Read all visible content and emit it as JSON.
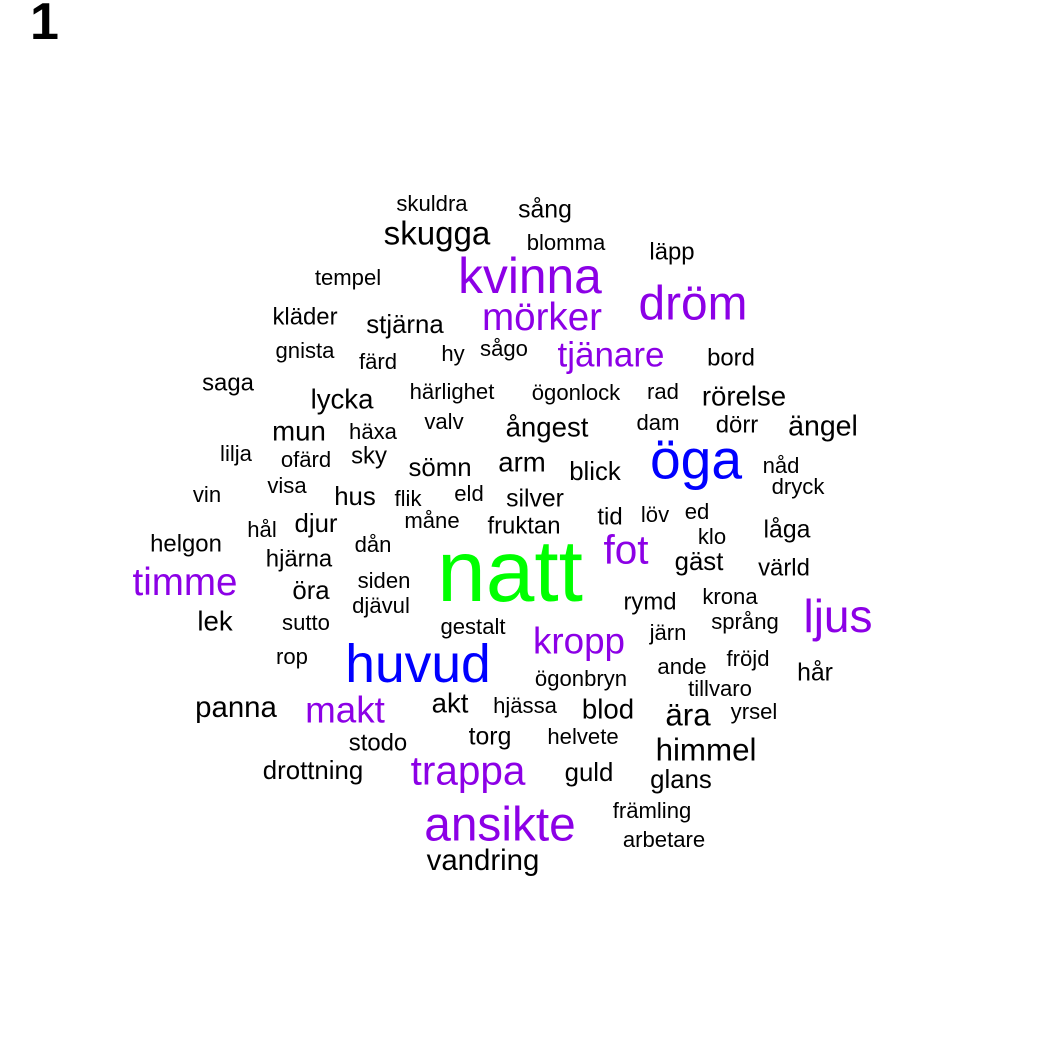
{
  "panel_label": "1",
  "colors": {
    "top": "#00ff00",
    "high": "#0000ff",
    "mid": "#8c00e6",
    "low": "#000000"
  },
  "words": [
    {
      "text": "natt",
      "weight": 95,
      "tier": "top"
    },
    {
      "text": "öga",
      "weight": 60,
      "tier": "high"
    },
    {
      "text": "huvud",
      "weight": 58,
      "tier": "high"
    },
    {
      "text": "kvinna",
      "weight": 54,
      "tier": "mid"
    },
    {
      "text": "dröm",
      "weight": 52,
      "tier": "mid"
    },
    {
      "text": "ansikte",
      "weight": 52,
      "tier": "mid"
    },
    {
      "text": "ljus",
      "weight": 50,
      "tier": "mid"
    },
    {
      "text": "trappa",
      "weight": 44,
      "tier": "mid"
    },
    {
      "text": "fot",
      "weight": 44,
      "tier": "mid"
    },
    {
      "text": "mörker",
      "weight": 42,
      "tier": "mid"
    },
    {
      "text": "timme",
      "weight": 42,
      "tier": "mid"
    },
    {
      "text": "kropp",
      "weight": 40,
      "tier": "mid"
    },
    {
      "text": "makt",
      "weight": 40,
      "tier": "mid"
    },
    {
      "text": "tjänare",
      "weight": 38,
      "tier": "mid"
    },
    {
      "text": "skugga",
      "weight": 36,
      "tier": "low"
    },
    {
      "text": "himmel",
      "weight": 34,
      "tier": "low"
    },
    {
      "text": "ära",
      "weight": 34,
      "tier": "low"
    },
    {
      "text": "panna",
      "weight": 32,
      "tier": "low"
    },
    {
      "text": "vandring",
      "weight": 32,
      "tier": "low"
    },
    {
      "text": "ängel",
      "weight": 31,
      "tier": "low"
    },
    {
      "text": "rörelse",
      "weight": 30,
      "tier": "low"
    },
    {
      "text": "ångest",
      "weight": 30,
      "tier": "low"
    },
    {
      "text": "arm",
      "weight": 30,
      "tier": "low"
    },
    {
      "text": "blod",
      "weight": 30,
      "tier": "low"
    },
    {
      "text": "akt",
      "weight": 30,
      "tier": "low"
    },
    {
      "text": "lycka",
      "weight": 30,
      "tier": "low"
    },
    {
      "text": "lek",
      "weight": 30,
      "tier": "low"
    },
    {
      "text": "mun",
      "weight": 30,
      "tier": "low"
    },
    {
      "text": "drottning",
      "weight": 28,
      "tier": "low"
    },
    {
      "text": "stjärna",
      "weight": 28,
      "tier": "low"
    },
    {
      "text": "sömn",
      "weight": 28,
      "tier": "low"
    },
    {
      "text": "gäst",
      "weight": 28,
      "tier": "low"
    },
    {
      "text": "guld",
      "weight": 28,
      "tier": "low"
    },
    {
      "text": "glans",
      "weight": 28,
      "tier": "low"
    },
    {
      "text": "hus",
      "weight": 28,
      "tier": "low"
    },
    {
      "text": "djur",
      "weight": 28,
      "tier": "low"
    },
    {
      "text": "öra",
      "weight": 28,
      "tier": "low"
    },
    {
      "text": "blick",
      "weight": 28,
      "tier": "low"
    },
    {
      "text": "silver",
      "weight": 27,
      "tier": "low"
    },
    {
      "text": "torg",
      "weight": 27,
      "tier": "low"
    },
    {
      "text": "låga",
      "weight": 27,
      "tier": "low"
    },
    {
      "text": "hår",
      "weight": 27,
      "tier": "low"
    },
    {
      "text": "sång",
      "weight": 27,
      "tier": "low"
    },
    {
      "text": "läpp",
      "weight": 26,
      "tier": "low"
    },
    {
      "text": "bord",
      "weight": 26,
      "tier": "low"
    },
    {
      "text": "saga",
      "weight": 26,
      "tier": "low"
    },
    {
      "text": "fruktan",
      "weight": 26,
      "tier": "low"
    },
    {
      "text": "värld",
      "weight": 26,
      "tier": "low"
    },
    {
      "text": "kläder",
      "weight": 26,
      "tier": "low"
    },
    {
      "text": "hjärna",
      "weight": 26,
      "tier": "low"
    },
    {
      "text": "helgon",
      "weight": 26,
      "tier": "low"
    },
    {
      "text": "stodo",
      "weight": 26,
      "tier": "low"
    },
    {
      "text": "tid",
      "weight": 26,
      "tier": "low"
    },
    {
      "text": "rymd",
      "weight": 26,
      "tier": "low"
    },
    {
      "text": "sky",
      "weight": 26,
      "tier": "low"
    },
    {
      "text": "dörr",
      "weight": 26,
      "tier": "low"
    },
    {
      "text": "blomma",
      "weight": 24,
      "tier": "low"
    },
    {
      "text": "tempel",
      "weight": 24,
      "tier": "low"
    },
    {
      "text": "skuldra",
      "weight": 24,
      "tier": "low"
    },
    {
      "text": "härlighet",
      "weight": 24,
      "tier": "low"
    },
    {
      "text": "ögonlock",
      "weight": 24,
      "tier": "low"
    },
    {
      "text": "rad",
      "weight": 24,
      "tier": "low"
    },
    {
      "text": "dam",
      "weight": 24,
      "tier": "low"
    },
    {
      "text": "valv",
      "weight": 24,
      "tier": "low"
    },
    {
      "text": "häxa",
      "weight": 24,
      "tier": "low"
    },
    {
      "text": "lilja",
      "weight": 24,
      "tier": "low"
    },
    {
      "text": "vin",
      "weight": 24,
      "tier": "low"
    },
    {
      "text": "visa",
      "weight": 24,
      "tier": "low"
    },
    {
      "text": "eld",
      "weight": 24,
      "tier": "low"
    },
    {
      "text": "löv",
      "weight": 24,
      "tier": "low"
    },
    {
      "text": "ed",
      "weight": 24,
      "tier": "low"
    },
    {
      "text": "klo",
      "weight": 24,
      "tier": "low"
    },
    {
      "text": "nåd",
      "weight": 24,
      "tier": "low"
    },
    {
      "text": "dryck",
      "weight": 24,
      "tier": "low"
    },
    {
      "text": "gnista",
      "weight": 24,
      "tier": "low"
    },
    {
      "text": "färd",
      "weight": 24,
      "tier": "low"
    },
    {
      "text": "hy",
      "weight": 24,
      "tier": "low"
    },
    {
      "text": "sågo",
      "weight": 24,
      "tier": "low"
    },
    {
      "text": "ofärd",
      "weight": 24,
      "tier": "low"
    },
    {
      "text": "flik",
      "weight": 24,
      "tier": "low"
    },
    {
      "text": "hål",
      "weight": 24,
      "tier": "low"
    },
    {
      "text": "måne",
      "weight": 24,
      "tier": "low"
    },
    {
      "text": "dån",
      "weight": 24,
      "tier": "low"
    },
    {
      "text": "siden",
      "weight": 24,
      "tier": "low"
    },
    {
      "text": "djävul",
      "weight": 24,
      "tier": "low"
    },
    {
      "text": "sutto",
      "weight": 24,
      "tier": "low"
    },
    {
      "text": "gestalt",
      "weight": 24,
      "tier": "low"
    },
    {
      "text": "krona",
      "weight": 24,
      "tier": "low"
    },
    {
      "text": "språng",
      "weight": 24,
      "tier": "low"
    },
    {
      "text": "järn",
      "weight": 24,
      "tier": "low"
    },
    {
      "text": "ande",
      "weight": 24,
      "tier": "low"
    },
    {
      "text": "fröjd",
      "weight": 24,
      "tier": "low"
    },
    {
      "text": "rop",
      "weight": 24,
      "tier": "low"
    },
    {
      "text": "ögonbryn",
      "weight": 24,
      "tier": "low"
    },
    {
      "text": "tillvaro",
      "weight": 24,
      "tier": "low"
    },
    {
      "text": "hjässa",
      "weight": 24,
      "tier": "low"
    },
    {
      "text": "yrsel",
      "weight": 24,
      "tier": "low"
    },
    {
      "text": "helvete",
      "weight": 24,
      "tier": "low"
    },
    {
      "text": "främling",
      "weight": 24,
      "tier": "low"
    },
    {
      "text": "arbetare",
      "weight": 24,
      "tier": "low"
    }
  ]
}
